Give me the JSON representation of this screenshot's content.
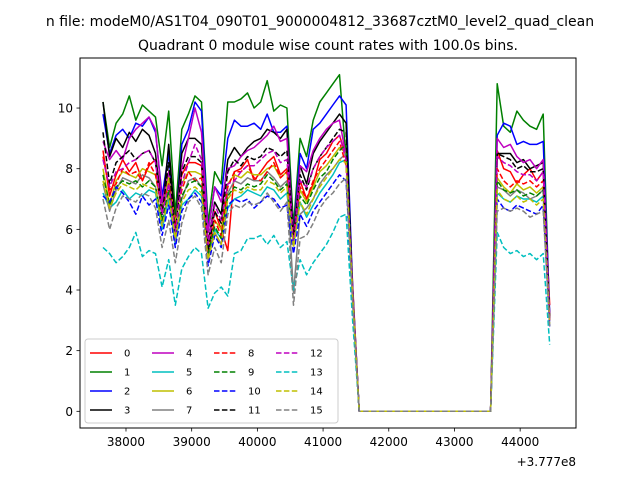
{
  "chart_data": {
    "type": "line",
    "suptitle": "n file: modeM0/AS1T04_090T01_9000004812_33687cztM0_level2_quad_clean",
    "title": "Quadrant 0 module wise count rates with 100.0s bins.",
    "xlabel": "",
    "ylabel": "",
    "x_offset_label": "+3.777e8",
    "xlim": [
      37300,
      44850
    ],
    "ylim": [
      -0.55,
      11.65
    ],
    "xticks": [
      38000,
      39000,
      40000,
      41000,
      42000,
      43000,
      44000
    ],
    "xtick_labels": [
      "38000",
      "39000",
      "40000",
      "41000",
      "42000",
      "43000",
      "44000"
    ],
    "yticks": [
      0,
      2,
      4,
      6,
      8,
      10
    ],
    "ytick_labels": [
      "0",
      "2",
      "4",
      "6",
      "8",
      "10"
    ],
    "grid": false,
    "legend_location": "lower left",
    "x": [
      37650,
      37750,
      37850,
      37950,
      38050,
      38150,
      38250,
      38350,
      38450,
      38550,
      38650,
      38750,
      38850,
      38950,
      39050,
      39150,
      39250,
      39350,
      39450,
      39550,
      39650,
      39750,
      39850,
      39950,
      40050,
      40150,
      40250,
      40350,
      40450,
      40550,
      40650,
      40750,
      40850,
      40950,
      41050,
      41150,
      41250,
      41350,
      41450,
      41550,
      41650,
      41750,
      41850,
      41950,
      42050,
      42150,
      42250,
      42350,
      42450,
      42550,
      42650,
      42750,
      42850,
      42950,
      43050,
      43150,
      43250,
      43350,
      43450,
      43550,
      43650,
      43750,
      43850,
      43950,
      44050,
      44150,
      44250,
      44350,
      44450
    ],
    "series": [
      {
        "name": "0",
        "color": "#ff0000",
        "dash": "solid",
        "values": [
          8.6,
          7.1,
          7.8,
          8.3,
          7.9,
          8.2,
          7.6,
          8.1,
          8.3,
          6.9,
          7.9,
          6.4,
          7.8,
          8.2,
          8.2,
          8.1,
          5.6,
          6.6,
          6.0,
          5.3,
          7.9,
          8.0,
          8.3,
          7.6,
          7.9,
          8.2,
          8.4,
          7.8,
          8.0,
          5.9,
          7.6,
          7.0,
          7.5,
          8.3,
          8.5,
          8.9,
          9.1,
          8.4,
          4.2,
          0,
          0,
          0,
          0,
          0,
          0,
          0,
          0,
          0,
          0,
          0,
          0,
          0,
          0,
          0,
          0,
          0,
          0,
          0,
          0,
          0,
          8.6,
          8.0,
          7.9,
          7.5,
          7.8,
          8.0,
          7.6,
          7.9,
          3.5
        ]
      },
      {
        "name": "1",
        "color": "#008000",
        "dash": "solid",
        "values": [
          10.2,
          8.7,
          9.5,
          9.8,
          10.4,
          9.6,
          10.1,
          9.9,
          9.7,
          8.1,
          9.9,
          6.5,
          9.3,
          9.8,
          10.4,
          10.2,
          6.2,
          7.9,
          7.5,
          10.2,
          10.2,
          10.3,
          10.5,
          10.0,
          10.2,
          10.9,
          9.9,
          10.1,
          10.0,
          6.1,
          9.0,
          8.4,
          9.6,
          10.2,
          10.5,
          10.8,
          11.1,
          8.3,
          4.1,
          0,
          0,
          0,
          0,
          0,
          0,
          0,
          0,
          0,
          0,
          0,
          0,
          0,
          0,
          0,
          0,
          0,
          0,
          0,
          0,
          0,
          10.8,
          9.4,
          9.2,
          9.9,
          9.6,
          9.4,
          9.3,
          9.8,
          3.0
        ]
      },
      {
        "name": "2",
        "color": "#0000ff",
        "dash": "solid",
        "values": [
          9.8,
          8.5,
          9.1,
          9.3,
          9.0,
          9.5,
          9.4,
          9.7,
          9.2,
          7.1,
          8.5,
          6.0,
          8.8,
          9.3,
          10.2,
          9.9,
          5.9,
          7.4,
          7.1,
          9.0,
          9.6,
          9.4,
          9.4,
          9.5,
          9.3,
          9.8,
          9.2,
          9.2,
          9.4,
          5.8,
          8.5,
          8.0,
          9.3,
          9.5,
          9.8,
          10.1,
          10.4,
          10.1,
          4.1,
          0,
          0,
          0,
          0,
          0,
          0,
          0,
          0,
          0,
          0,
          0,
          0,
          0,
          0,
          0,
          0,
          0,
          0,
          0,
          0,
          0,
          9.1,
          9.5,
          9.4,
          8.8,
          8.9,
          8.8,
          8.8,
          8.9,
          3.2
        ]
      },
      {
        "name": "3",
        "color": "#000000",
        "dash": "solid",
        "values": [
          10.2,
          8.4,
          9.0,
          8.7,
          9.2,
          8.9,
          9.3,
          9.1,
          8.5,
          6.5,
          8.8,
          6.1,
          8.5,
          9.0,
          9.0,
          8.8,
          5.5,
          6.9,
          6.5,
          8.3,
          8.7,
          8.4,
          8.7,
          8.9,
          9.0,
          9.3,
          9.2,
          9.0,
          9.3,
          5.8,
          8.1,
          7.5,
          8.5,
          8.9,
          9.2,
          9.5,
          9.8,
          9.5,
          3.9,
          0,
          0,
          0,
          0,
          0,
          0,
          0,
          0,
          0,
          0,
          0,
          0,
          0,
          0,
          0,
          0,
          0,
          0,
          0,
          0,
          0,
          8.5,
          8.5,
          8.5,
          8.2,
          8.3,
          8.0,
          8.1,
          8.2,
          3.1
        ]
      },
      {
        "name": "4",
        "color": "#bf00bf",
        "dash": "solid",
        "values": [
          8.9,
          8.3,
          8.6,
          8.3,
          9.0,
          9.3,
          9.5,
          9.7,
          9.3,
          6.9,
          7.9,
          6.1,
          8.0,
          9.0,
          10.0,
          9.2,
          5.9,
          7.4,
          6.9,
          8.0,
          8.1,
          8.4,
          8.6,
          8.7,
          8.9,
          9.1,
          9.4,
          8.9,
          9.0,
          5.7,
          8.1,
          7.9,
          8.6,
          9.0,
          9.3,
          9.5,
          9.6,
          8.4,
          4.0,
          0,
          0,
          0,
          0,
          0,
          0,
          0,
          0,
          0,
          0,
          0,
          0,
          0,
          0,
          0,
          0,
          0,
          0,
          0,
          0,
          0,
          9.0,
          8.7,
          8.8,
          8.4,
          8.2,
          8.3,
          8.0,
          8.3,
          3.1
        ]
      },
      {
        "name": "5",
        "color": "#00bfbf",
        "dash": "solid",
        "values": [
          7.2,
          6.7,
          6.9,
          7.3,
          7.0,
          7.2,
          7.1,
          7.3,
          7.2,
          6.0,
          7.0,
          5.5,
          6.8,
          7.0,
          7.3,
          7.1,
          5.1,
          6.0,
          5.7,
          6.7,
          7.0,
          7.1,
          7.3,
          7.2,
          7.1,
          7.4,
          7.3,
          7.0,
          7.2,
          5.5,
          6.9,
          6.4,
          6.8,
          7.2,
          7.5,
          7.8,
          8.2,
          8.3,
          3.7,
          0,
          0,
          0,
          0,
          0,
          0,
          0,
          0,
          0,
          0,
          0,
          0,
          0,
          0,
          0,
          0,
          0,
          0,
          0,
          0,
          0,
          7.2,
          7.0,
          6.9,
          7.1,
          7.0,
          7.0,
          6.9,
          7.1,
          3.0
        ]
      },
      {
        "name": "6",
        "color": "#bfbf00",
        "dash": "solid",
        "values": [
          8.0,
          6.8,
          7.6,
          7.9,
          7.8,
          7.7,
          8.0,
          7.9,
          7.8,
          6.6,
          7.7,
          6.2,
          7.5,
          7.9,
          7.9,
          7.8,
          5.4,
          6.3,
          6.0,
          7.5,
          7.8,
          7.7,
          7.9,
          7.8,
          7.8,
          8.0,
          8.1,
          7.7,
          7.9,
          5.6,
          7.3,
          6.9,
          7.4,
          7.9,
          8.1,
          8.4,
          8.7,
          8.5,
          3.9,
          0,
          0,
          0,
          0,
          0,
          0,
          0,
          0,
          0,
          0,
          0,
          0,
          0,
          0,
          0,
          0,
          0,
          0,
          0,
          0,
          0,
          7.7,
          7.4,
          7.2,
          7.5,
          7.3,
          7.4,
          7.2,
          7.4,
          3.0
        ]
      },
      {
        "name": "7",
        "color": "#808080",
        "dash": "solid",
        "values": [
          7.5,
          6.6,
          7.3,
          7.7,
          7.6,
          7.5,
          7.8,
          7.7,
          7.4,
          6.2,
          7.2,
          5.6,
          7.0,
          7.6,
          7.7,
          7.4,
          5.0,
          5.9,
          5.5,
          7.2,
          7.6,
          7.5,
          7.7,
          7.6,
          7.6,
          7.9,
          7.7,
          7.4,
          7.6,
          3.9,
          6.5,
          6.7,
          7.0,
          7.5,
          7.8,
          8.0,
          8.3,
          8.5,
          3.8,
          0,
          0,
          0,
          0,
          0,
          0,
          0,
          0,
          0,
          0,
          0,
          0,
          0,
          0,
          0,
          0,
          0,
          0,
          0,
          0,
          0,
          7.4,
          7.3,
          7.1,
          7.3,
          7.2,
          7.0,
          7.1,
          7.3,
          3.0
        ]
      },
      {
        "name": "8",
        "color": "#ff0000",
        "dash": "dashed",
        "values": [
          8.4,
          7.3,
          7.5,
          8.0,
          7.8,
          7.9,
          7.6,
          8.2,
          7.8,
          6.6,
          7.5,
          6.1,
          7.3,
          7.9,
          7.6,
          7.7,
          5.2,
          6.3,
          5.8,
          7.4,
          7.9,
          7.9,
          8.1,
          7.7,
          7.6,
          7.9,
          8.2,
          7.7,
          7.9,
          5.7,
          7.4,
          7.0,
          7.6,
          8.0,
          8.3,
          8.6,
          8.9,
          8.1,
          3.8,
          0,
          0,
          0,
          0,
          0,
          0,
          0,
          0,
          0,
          0,
          0,
          0,
          0,
          0,
          0,
          0,
          0,
          0,
          0,
          0,
          0,
          8.0,
          7.6,
          7.4,
          7.6,
          7.5,
          7.6,
          7.4,
          7.6,
          3.0
        ]
      },
      {
        "name": "9",
        "color": "#008000",
        "dash": "dashed",
        "values": [
          7.8,
          6.8,
          7.4,
          7.6,
          7.5,
          7.6,
          7.4,
          7.6,
          7.4,
          6.3,
          7.3,
          5.8,
          7.1,
          7.5,
          7.6,
          7.4,
          5.2,
          6.1,
          5.7,
          7.1,
          7.4,
          7.3,
          7.5,
          7.4,
          7.5,
          7.8,
          7.6,
          7.3,
          7.5,
          5.6,
          7.1,
          6.8,
          7.3,
          7.7,
          7.9,
          8.3,
          8.6,
          8.8,
          3.8,
          0,
          0,
          0,
          0,
          0,
          0,
          0,
          0,
          0,
          0,
          0,
          0,
          0,
          0,
          0,
          0,
          0,
          0,
          0,
          0,
          0,
          7.6,
          7.3,
          7.2,
          7.3,
          7.1,
          7.2,
          7.1,
          7.3,
          2.9
        ]
      },
      {
        "name": "10",
        "color": "#0000ff",
        "dash": "dashed",
        "values": [
          7.1,
          6.9,
          7.4,
          7.2,
          6.9,
          6.5,
          7.1,
          6.8,
          7.0,
          5.8,
          6.8,
          5.4,
          6.6,
          7.0,
          7.2,
          6.9,
          4.8,
          5.8,
          5.4,
          6.8,
          7.0,
          6.9,
          7.0,
          6.7,
          6.9,
          7.1,
          7.0,
          6.7,
          6.8,
          5.2,
          6.5,
          6.1,
          6.6,
          6.9,
          7.2,
          7.5,
          7.8,
          7.6,
          3.6,
          0,
          0,
          0,
          0,
          0,
          0,
          0,
          0,
          0,
          0,
          0,
          0,
          0,
          0,
          0,
          0,
          0,
          0,
          0,
          0,
          0,
          7.0,
          6.7,
          6.6,
          6.8,
          6.7,
          6.6,
          6.5,
          6.8,
          2.8
        ]
      },
      {
        "name": "11",
        "color": "#000000",
        "dash": "dashed",
        "values": [
          9.2,
          7.5,
          8.2,
          8.4,
          8.6,
          8.3,
          8.5,
          8.6,
          8.2,
          6.5,
          8.2,
          5.9,
          7.9,
          8.4,
          8.4,
          8.2,
          5.3,
          6.6,
          6.2,
          7.9,
          8.3,
          8.1,
          8.4,
          8.3,
          8.4,
          8.7,
          8.6,
          8.4,
          8.6,
          5.7,
          7.8,
          7.3,
          8.0,
          8.4,
          8.7,
          9.0,
          9.3,
          9.2,
          3.9,
          0,
          0,
          0,
          0,
          0,
          0,
          0,
          0,
          0,
          0,
          0,
          0,
          0,
          0,
          0,
          0,
          0,
          0,
          0,
          0,
          0,
          8.5,
          8.4,
          8.3,
          8.0,
          8.1,
          7.9,
          7.9,
          8.0,
          3.0
        ]
      },
      {
        "name": "12",
        "color": "#bf00bf",
        "dash": "dashed",
        "values": [
          8.3,
          7.4,
          7.9,
          8.0,
          8.2,
          8.3,
          8.5,
          8.6,
          8.2,
          6.5,
          7.5,
          5.9,
          7.5,
          8.2,
          8.8,
          8.3,
          5.5,
          6.8,
          6.3,
          7.5,
          7.6,
          7.9,
          8.1,
          8.1,
          8.3,
          8.5,
          8.6,
          8.2,
          8.3,
          5.5,
          7.6,
          7.4,
          8.0,
          8.4,
          8.7,
          8.9,
          9.1,
          8.3,
          3.9,
          0,
          0,
          0,
          0,
          0,
          0,
          0,
          0,
          0,
          0,
          0,
          0,
          0,
          0,
          0,
          0,
          0,
          0,
          0,
          0,
          0,
          8.4,
          8.2,
          8.1,
          7.9,
          7.8,
          7.8,
          7.6,
          7.9,
          3.0
        ]
      },
      {
        "name": "13",
        "color": "#00bfbf",
        "dash": "dashed",
        "values": [
          5.4,
          5.2,
          4.9,
          5.1,
          5.4,
          5.9,
          5.1,
          5.3,
          5.2,
          4.1,
          5.0,
          3.5,
          4.7,
          5.1,
          5.4,
          5.2,
          3.4,
          3.9,
          4.1,
          3.8,
          5.2,
          5.3,
          5.7,
          5.7,
          5.8,
          5.5,
          5.8,
          5.4,
          5.6,
          4.0,
          5.0,
          4.5,
          4.9,
          5.2,
          5.5,
          5.9,
          6.4,
          6.5,
          3.0,
          0,
          0,
          0,
          0,
          0,
          0,
          0,
          0,
          0,
          0,
          0,
          0,
          0,
          0,
          0,
          0,
          0,
          0,
          0,
          0,
          0,
          5.9,
          5.4,
          5.2,
          5.3,
          5.1,
          5.2,
          5.0,
          5.2,
          2.2
        ]
      },
      {
        "name": "14",
        "color": "#bfbf00",
        "dash": "dashed",
        "values": [
          7.6,
          6.7,
          7.2,
          7.5,
          7.4,
          7.3,
          7.5,
          7.4,
          7.3,
          6.1,
          7.1,
          5.7,
          6.9,
          7.3,
          7.4,
          7.2,
          5.0,
          5.9,
          5.5,
          7.0,
          7.3,
          7.2,
          7.4,
          7.3,
          7.3,
          7.6,
          7.5,
          7.2,
          7.4,
          5.4,
          6.9,
          6.5,
          7.0,
          7.4,
          7.7,
          8.0,
          8.3,
          8.2,
          3.8,
          0,
          0,
          0,
          0,
          0,
          0,
          0,
          0,
          0,
          0,
          0,
          0,
          0,
          0,
          0,
          0,
          0,
          0,
          0,
          0,
          0,
          7.3,
          7.0,
          6.9,
          7.1,
          6.9,
          7.0,
          6.8,
          7.0,
          2.9
        ]
      },
      {
        "name": "15",
        "color": "#808080",
        "dash": "dashed",
        "values": [
          7.0,
          6.0,
          6.7,
          7.1,
          7.0,
          6.9,
          7.2,
          7.1,
          6.7,
          5.4,
          6.3,
          4.9,
          6.2,
          6.9,
          7.1,
          6.7,
          4.5,
          5.4,
          4.9,
          6.5,
          6.8,
          6.7,
          6.9,
          6.8,
          6.9,
          7.2,
          6.9,
          6.6,
          6.9,
          3.5,
          5.7,
          5.8,
          6.2,
          6.7,
          7.0,
          7.2,
          7.5,
          7.7,
          3.6,
          0,
          0,
          0,
          0,
          0,
          0,
          0,
          0,
          0,
          0,
          0,
          0,
          0,
          0,
          0,
          0,
          0,
          0,
          0,
          0,
          0,
          6.6,
          6.7,
          6.6,
          6.7,
          6.6,
          6.4,
          6.5,
          6.6,
          2.8
        ]
      }
    ]
  }
}
